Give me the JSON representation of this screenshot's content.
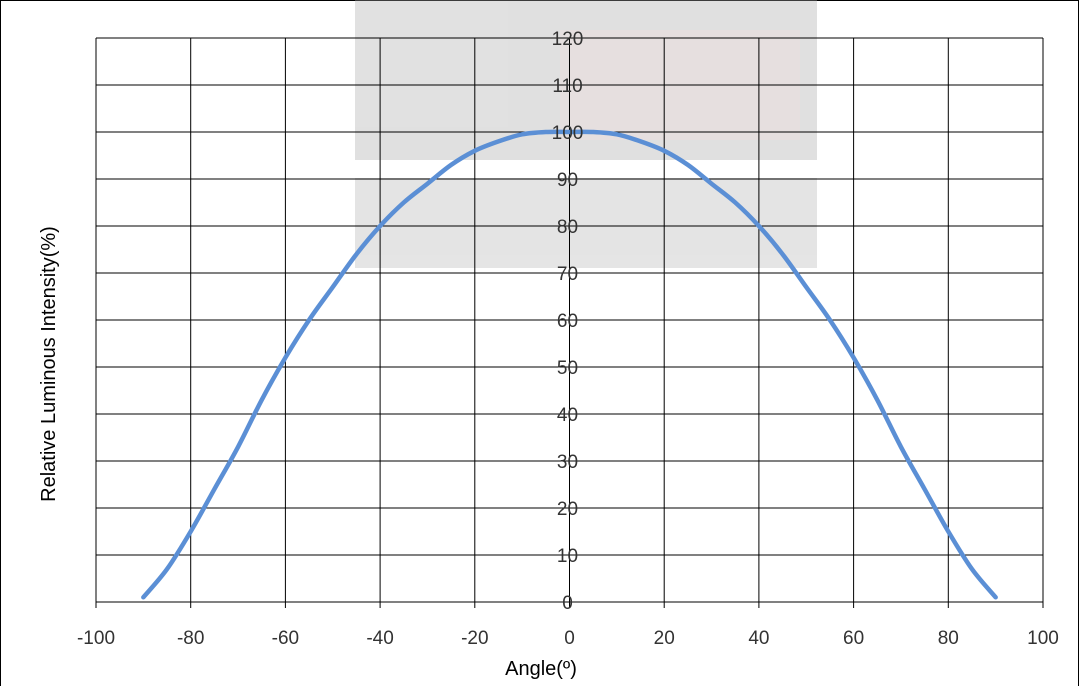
{
  "chart_data": {
    "type": "line",
    "title": "",
    "xlabel": "Angle(º)",
    "ylabel": "Relative Luminous Intensity(%)",
    "xlim": [
      -100,
      100
    ],
    "ylim": [
      0,
      120
    ],
    "xticks": [
      -100,
      -80,
      -60,
      -40,
      -20,
      0,
      20,
      40,
      60,
      80,
      100
    ],
    "yticks": [
      0,
      10,
      20,
      30,
      40,
      50,
      60,
      70,
      80,
      90,
      100,
      110,
      120
    ],
    "grid": true,
    "legend": "none",
    "series": [
      {
        "color": "#5b8fd5",
        "x": [
          -90,
          -85,
          -80,
          -75,
          -70,
          -65,
          -60,
          -55,
          -50,
          -45,
          -40,
          -35,
          -30,
          -25,
          -20,
          -15,
          -10,
          -5,
          0,
          5,
          10,
          15,
          20,
          25,
          30,
          35,
          40,
          45,
          50,
          55,
          60,
          65,
          70,
          75,
          80,
          85,
          90
        ],
        "y": [
          1,
          7,
          15,
          24,
          33,
          43,
          52,
          60,
          67,
          74,
          80,
          85,
          89,
          93,
          96,
          98,
          99.5,
          100,
          100,
          100,
          99.5,
          98,
          96,
          93,
          89,
          85,
          80,
          74,
          67,
          60,
          52,
          43,
          33,
          24,
          15,
          7,
          1
        ]
      }
    ]
  }
}
